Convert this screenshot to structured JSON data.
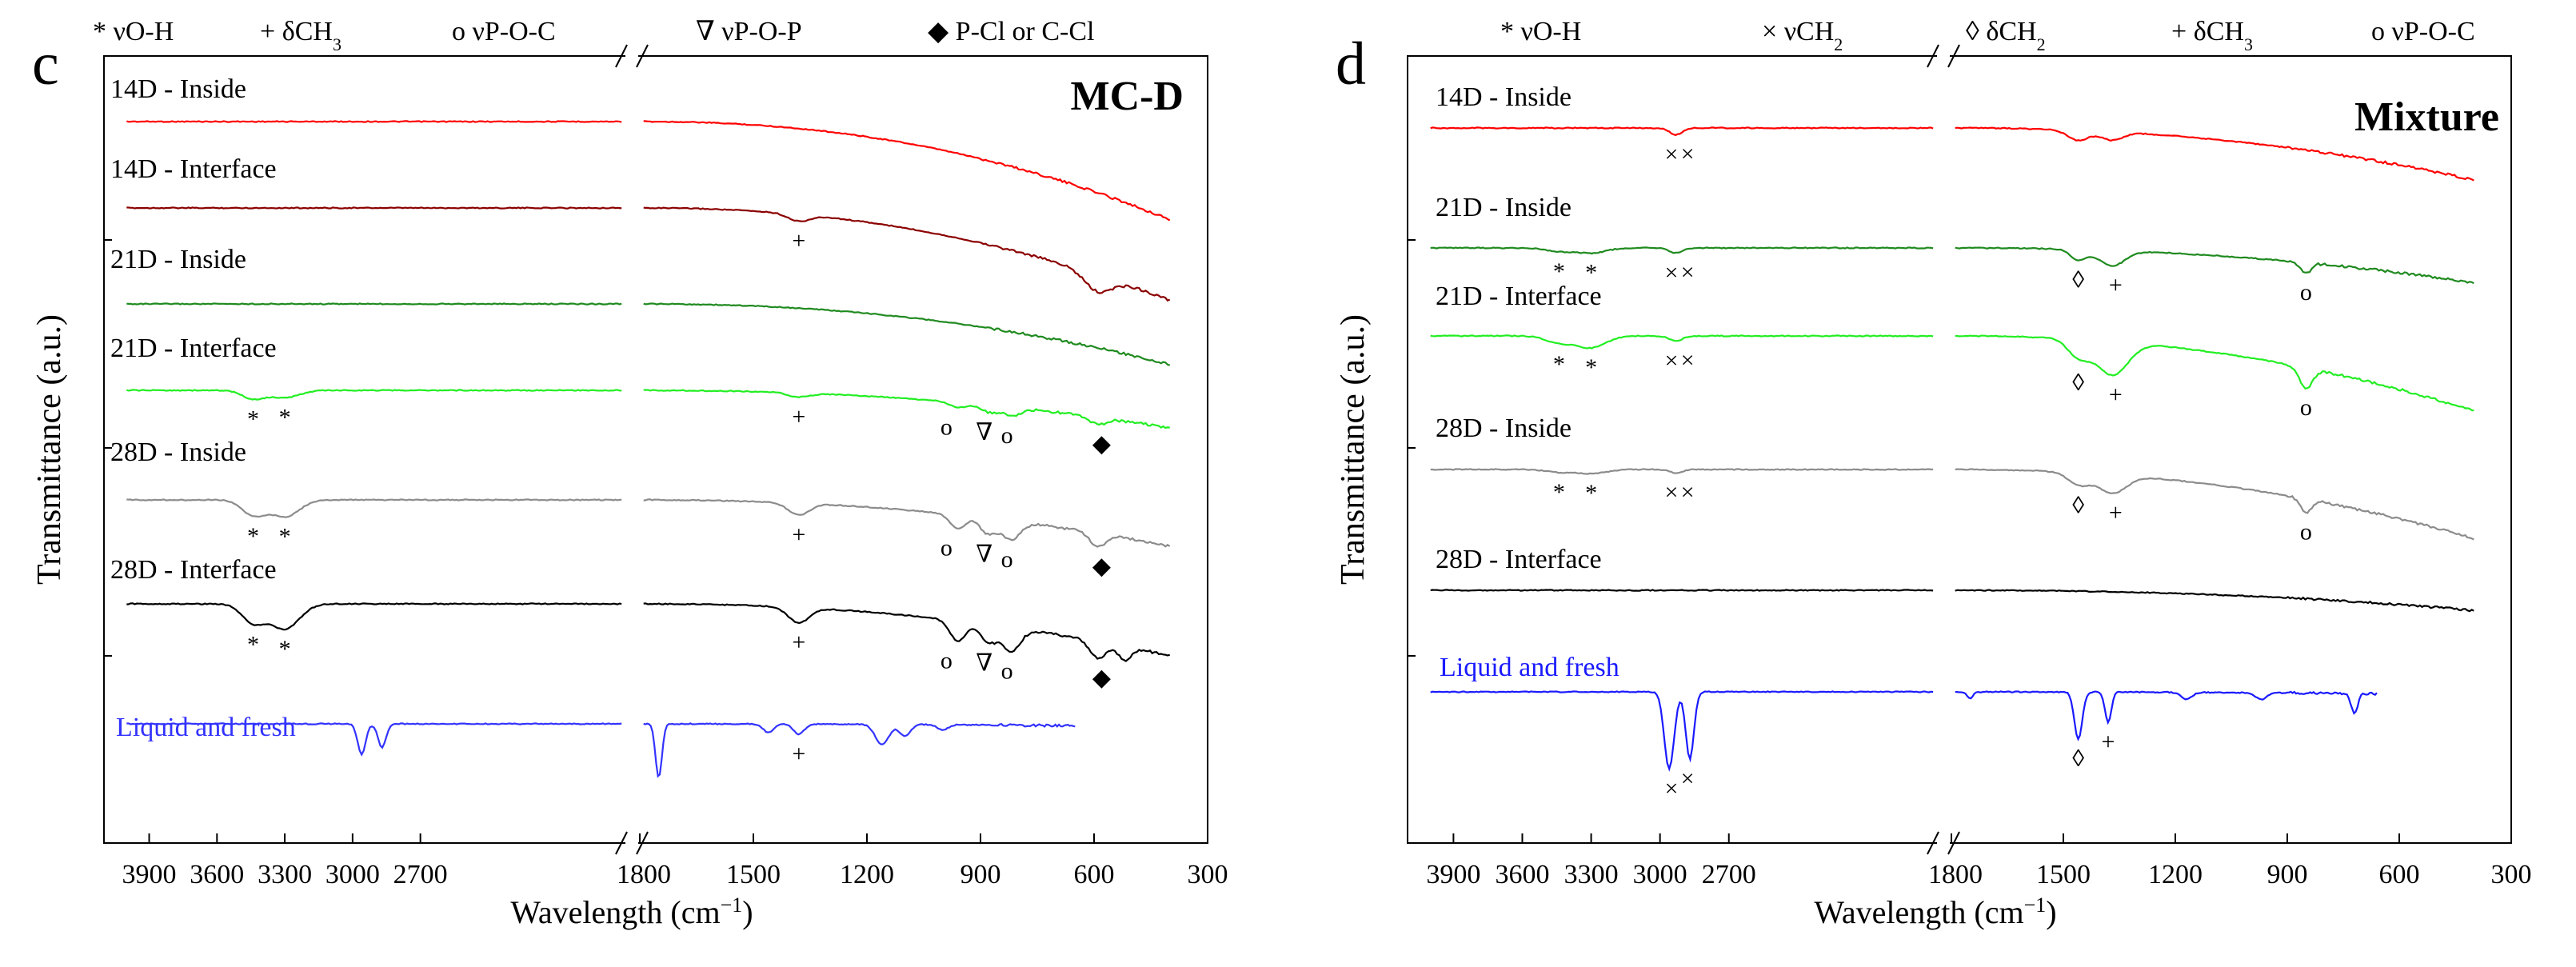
{
  "chart_data": [
    {
      "type": "line",
      "panel_letter": "c",
      "title": "MC-D",
      "xlabel": "Wavelength",
      "xlabel_unit": "(cm",
      "xlabel_unit_sup": "−1",
      "xlabel_unit_close": ")",
      "ylabel": "Transmittance (a.u.)",
      "x_axis_break": [
        1800,
        1800
      ],
      "x_left_range": [
        4100,
        1800
      ],
      "x_right_range": [
        1800,
        300
      ],
      "x_ticks_left": [
        "3900",
        "3600",
        "3300",
        "3000",
        "2700"
      ],
      "x_ticks_left_values": [
        3900,
        3600,
        3300,
        3000,
        2700
      ],
      "x_tick_break": "1800",
      "x_ticks_right": [
        "1500",
        "1200",
        "900",
        "600",
        "300"
      ],
      "x_ticks_right_values": [
        1500,
        1200,
        900,
        600,
        300
      ],
      "legend": [
        {
          "symbol": "*",
          "label": "νO-H"
        },
        {
          "symbol": "+",
          "label": "δCH",
          "sub": "3"
        },
        {
          "symbol": "o",
          "label": "νP-O-C"
        },
        {
          "symbol": "∇",
          "label": "νP-O-P"
        },
        {
          "symbol": "◆",
          "label": "P-Cl or C-Cl"
        }
      ],
      "series": [
        {
          "name": "14D - Inside",
          "color": "#ff0000",
          "offset": 7.5,
          "peaks": [],
          "markers": [],
          "slope": 3.4
        },
        {
          "name": "14D - Interface",
          "color": "#8b0000",
          "offset": 6.3,
          "peaks": [
            {
              "x": 1380,
              "depth": 0.2,
              "width": 40
            },
            {
              "x": 590,
              "depth": 0.5,
              "width": 50
            }
          ],
          "markers": [
            {
              "x": 1380,
              "symbol": "+"
            }
          ],
          "slope": 3.2
        },
        {
          "name": "21D - Inside",
          "color": "#1f8a1f",
          "offset": 5.1,
          "peaks": [],
          "markers": [],
          "slope": 2.1
        },
        {
          "name": "21D - Interface",
          "color": "#22ee22",
          "offset": 3.8,
          "peaks": [
            {
              "x": 3440,
              "depth": 0.25,
              "width": 70
            },
            {
              "x": 3300,
              "depth": 0.22,
              "width": 90
            },
            {
              "x": 1380,
              "depth": 0.12,
              "width": 40
            },
            {
              "x": 960,
              "depth": 0.15,
              "width": 30
            },
            {
              "x": 880,
              "depth": 0.2,
              "width": 30
            },
            {
              "x": 820,
              "depth": 0.25,
              "width": 35
            },
            {
              "x": 590,
              "depth": 0.2,
              "width": 30
            }
          ],
          "markers": [
            {
              "x": 3440,
              "symbol": "*"
            },
            {
              "x": 3300,
              "symbol": "*"
            },
            {
              "x": 1380,
              "symbol": "+"
            },
            {
              "x": 990,
              "symbol": "o"
            },
            {
              "x": 890,
              "symbol": "∇"
            },
            {
              "x": 830,
              "symbol": "o"
            },
            {
              "x": 580,
              "symbol": "◆"
            }
          ],
          "slope": 1.3
        },
        {
          "name": "28D - Inside",
          "color": "#8c8c8c",
          "offset": 2.5,
          "peaks": [
            {
              "x": 3440,
              "depth": 0.45,
              "width": 70
            },
            {
              "x": 3300,
              "depth": 0.5,
              "width": 90
            },
            {
              "x": 1380,
              "depth": 0.35,
              "width": 40
            },
            {
              "x": 960,
              "depth": 0.4,
              "width": 30
            },
            {
              "x": 880,
              "depth": 0.45,
              "width": 30
            },
            {
              "x": 820,
              "depth": 0.55,
              "width": 35
            },
            {
              "x": 590,
              "depth": 0.4,
              "width": 30
            }
          ],
          "markers": [
            {
              "x": 3440,
              "symbol": "*"
            },
            {
              "x": 3300,
              "symbol": "*"
            },
            {
              "x": 1380,
              "symbol": "+"
            },
            {
              "x": 990,
              "symbol": "o"
            },
            {
              "x": 890,
              "symbol": "∇"
            },
            {
              "x": 830,
              "symbol": "o"
            },
            {
              "x": 580,
              "symbol": "◆"
            }
          ],
          "slope": 1.6
        },
        {
          "name": "28D - Interface",
          "color": "#000000",
          "offset": 1.2,
          "peaks": [
            {
              "x": 3440,
              "depth": 0.55,
              "width": 70
            },
            {
              "x": 3300,
              "depth": 0.75,
              "width": 90
            },
            {
              "x": 1380,
              "depth": 0.45,
              "width": 40
            },
            {
              "x": 960,
              "depth": 0.6,
              "width": 30
            },
            {
              "x": 880,
              "depth": 0.5,
              "width": 30
            },
            {
              "x": 820,
              "depth": 0.7,
              "width": 35
            },
            {
              "x": 590,
              "depth": 0.5,
              "width": 30
            },
            {
              "x": 520,
              "depth": 0.4,
              "width": 25
            }
          ],
          "markers": [
            {
              "x": 3440,
              "symbol": "*"
            },
            {
              "x": 3300,
              "symbol": "*"
            },
            {
              "x": 1380,
              "symbol": "+"
            },
            {
              "x": 990,
              "symbol": "o"
            },
            {
              "x": 890,
              "symbol": "∇"
            },
            {
              "x": 830,
              "symbol": "o"
            },
            {
              "x": 580,
              "symbol": "◆"
            }
          ],
          "slope": 1.8
        },
        {
          "name": "Liquid and fresh",
          "color": "#3333ff",
          "offset": 0.0,
          "peaks": [
            {
              "x": 2960,
              "depth": 0.9,
              "width": 25
            },
            {
              "x": 2870,
              "depth": 0.7,
              "width": 25
            },
            {
              "x": 1750,
              "depth": 1.6,
              "width": 12
            },
            {
              "x": 1460,
              "depth": 0.25,
              "width": 20
            },
            {
              "x": 1380,
              "depth": 0.3,
              "width": 20
            },
            {
              "x": 1160,
              "depth": 0.6,
              "width": 25
            },
            {
              "x": 1100,
              "depth": 0.35,
              "width": 20
            },
            {
              "x": 1000,
              "depth": 0.15,
              "width": 20
            }
          ],
          "markers": [
            {
              "x": 1380,
              "symbol": "+"
            }
          ],
          "slope": 0.1
        }
      ]
    },
    {
      "type": "line",
      "panel_letter": "d",
      "title": "Mixture",
      "xlabel": "Wavelength",
      "xlabel_unit": "(cm",
      "xlabel_unit_sup": "−1",
      "xlabel_unit_close": ")",
      "ylabel": "Transmittance (a.u.)",
      "x_axis_break": [
        1800,
        1800
      ],
      "x_left_range": [
        4100,
        1800
      ],
      "x_right_range": [
        1800,
        300
      ],
      "x_ticks_left": [
        "3900",
        "3600",
        "3300",
        "3000",
        "2700"
      ],
      "x_ticks_left_values": [
        3900,
        3600,
        3300,
        3000,
        2700
      ],
      "x_tick_break": "1800",
      "x_ticks_right": [
        "1500",
        "1200",
        "900",
        "600",
        "300"
      ],
      "x_ticks_right_values": [
        1500,
        1200,
        900,
        600,
        300
      ],
      "legend": [
        {
          "symbol": "*",
          "label": "νO-H"
        },
        {
          "symbol": "×",
          "label": "νCH",
          "sub": "2"
        },
        {
          "symbol": "◊",
          "label": "δCH",
          "sub": "2"
        },
        {
          "symbol": "+",
          "label": "δCH",
          "sub": "3"
        },
        {
          "symbol": "o",
          "label": "νP-O-C"
        }
      ],
      "series": [
        {
          "name": "14D - Inside",
          "color": "#ff0000",
          "offset": 7.6,
          "peaks": [
            {
              "x": 2930,
              "depth": 0.2,
              "width": 40
            },
            {
              "x": 1460,
              "depth": 0.3,
              "width": 40
            },
            {
              "x": 1370,
              "depth": 0.25,
              "width": 40
            }
          ],
          "markers": [
            {
              "x": 2950,
              "symbol": "×"
            },
            {
              "x": 2880,
              "symbol": "×"
            }
          ],
          "slope": 1.8
        },
        {
          "name": "21D - Inside",
          "color": "#1f8a1f",
          "offset": 6.1,
          "peaks": [
            {
              "x": 3440,
              "depth": 0.1,
              "width": 80
            },
            {
              "x": 3300,
              "depth": 0.15,
              "width": 90
            },
            {
              "x": 2930,
              "depth": 0.15,
              "width": 40
            },
            {
              "x": 1460,
              "depth": 0.3,
              "width": 30
            },
            {
              "x": 1370,
              "depth": 0.45,
              "width": 50
            },
            {
              "x": 850,
              "depth": 0.3,
              "width": 20
            }
          ],
          "markers": [
            {
              "x": 1460,
              "symbol": "◊"
            },
            {
              "x": 1360,
              "symbol": "+"
            },
            {
              "x": 3440,
              "symbol": "*"
            },
            {
              "x": 3300,
              "symbol": "*"
            },
            {
              "x": 2950,
              "symbol": "×"
            },
            {
              "x": 2880,
              "symbol": "×"
            },
            {
              "x": 850,
              "symbol": "o"
            }
          ],
          "slope": 1.2
        },
        {
          "name": "21D - Interface",
          "color": "#22ee22",
          "offset": 4.7,
          "peaks": [
            {
              "x": 3440,
              "depth": 0.2,
              "width": 80
            },
            {
              "x": 3300,
              "depth": 0.35,
              "width": 90
            },
            {
              "x": 2930,
              "depth": 0.15,
              "width": 40
            },
            {
              "x": 1460,
              "depth": 0.5,
              "width": 40
            },
            {
              "x": 1370,
              "depth": 1.0,
              "width": 60
            },
            {
              "x": 850,
              "depth": 0.6,
              "width": 25
            }
          ],
          "markers": [
            {
              "x": 3440,
              "symbol": "*"
            },
            {
              "x": 3300,
              "symbol": "*"
            },
            {
              "x": 2950,
              "symbol": "×"
            },
            {
              "x": 2880,
              "symbol": "×"
            },
            {
              "x": 1460,
              "symbol": "◊"
            },
            {
              "x": 1360,
              "symbol": "+"
            },
            {
              "x": 850,
              "symbol": "o"
            }
          ],
          "slope": 2.6
        },
        {
          "name": "28D - Inside",
          "color": "#8c8c8c",
          "offset": 3.3,
          "peaks": [
            {
              "x": 3440,
              "depth": 0.08,
              "width": 80
            },
            {
              "x": 3300,
              "depth": 0.12,
              "width": 90
            },
            {
              "x": 2930,
              "depth": 0.1,
              "width": 40
            },
            {
              "x": 1460,
              "depth": 0.35,
              "width": 40
            },
            {
              "x": 1370,
              "depth": 0.55,
              "width": 55
            },
            {
              "x": 850,
              "depth": 0.4,
              "width": 20
            }
          ],
          "markers": [
            {
              "x": 3440,
              "symbol": "*"
            },
            {
              "x": 3300,
              "symbol": "*"
            },
            {
              "x": 2950,
              "symbol": "×"
            },
            {
              "x": 2880,
              "symbol": "×"
            },
            {
              "x": 1460,
              "symbol": "◊"
            },
            {
              "x": 1360,
              "symbol": "+"
            },
            {
              "x": 850,
              "symbol": "o"
            }
          ],
          "slope": 2.4
        },
        {
          "name": "28D - Interface",
          "color": "#000000",
          "offset": 1.7,
          "peaks": [],
          "markers": [],
          "slope": 0.7
        },
        {
          "name": "Liquid and fresh",
          "color": "#1a1aff",
          "offset": 0.0,
          "peaks": [
            {
              "x": 2960,
              "depth": 2.3,
              "width": 30
            },
            {
              "x": 2870,
              "depth": 2.0,
              "width": 25
            },
            {
              "x": 1460,
              "depth": 1.4,
              "width": 15
            },
            {
              "x": 1380,
              "depth": 0.9,
              "width": 12
            },
            {
              "x": 1750,
              "depth": 0.2,
              "width": 10
            },
            {
              "x": 1170,
              "depth": 0.2,
              "width": 20
            },
            {
              "x": 970,
              "depth": 0.2,
              "width": 20
            },
            {
              "x": 720,
              "depth": 0.6,
              "width": 12
            }
          ],
          "markers": [
            {
              "x": 2950,
              "symbol": "×"
            },
            {
              "x": 2880,
              "symbol": "×"
            },
            {
              "x": 1460,
              "symbol": "◊"
            },
            {
              "x": 1380,
              "symbol": "+"
            }
          ],
          "slope": 0.1
        }
      ]
    }
  ]
}
